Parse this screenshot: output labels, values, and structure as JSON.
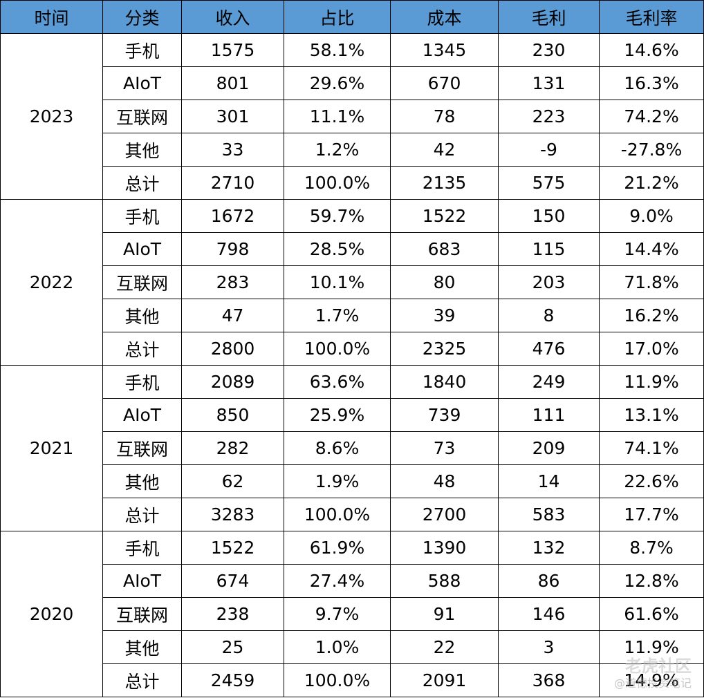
{
  "headers": [
    "时间",
    "分类",
    "收入",
    "占比",
    "成本",
    "毛利",
    "毛利率"
  ],
  "groups": [
    {
      "year": "2023",
      "rows": [
        [
          "手机",
          "1575",
          "58.1%",
          "1345",
          "230",
          "14.6%"
        ],
        [
          "AIoT",
          "801",
          "29.6%",
          "670",
          "131",
          "16.3%"
        ],
        [
          "互联网",
          "301",
          "11.1%",
          "78",
          "223",
          "74.2%"
        ],
        [
          "其他",
          "33",
          "1.2%",
          "42",
          "-9",
          "-27.8%"
        ],
        [
          "总计",
          "2710",
          "100.0%",
          "2135",
          "575",
          "21.2%"
        ]
      ]
    },
    {
      "year": "2022",
      "rows": [
        [
          "手机",
          "1672",
          "59.7%",
          "1522",
          "150",
          "9.0%"
        ],
        [
          "AIoT",
          "798",
          "28.5%",
          "683",
          "115",
          "14.4%"
        ],
        [
          "互联网",
          "283",
          "10.1%",
          "80",
          "203",
          "71.8%"
        ],
        [
          "其他",
          "47",
          "1.7%",
          "39",
          "8",
          "16.2%"
        ],
        [
          "总计",
          "2800",
          "100.0%",
          "2325",
          "476",
          "17.0%"
        ]
      ]
    },
    {
      "year": "2021",
      "rows": [
        [
          "手机",
          "2089",
          "63.6%",
          "1840",
          "249",
          "11.9%"
        ],
        [
          "AIoT",
          "850",
          "25.9%",
          "739",
          "111",
          "13.1%"
        ],
        [
          "互联网",
          "282",
          "8.6%",
          "73",
          "209",
          "74.1%"
        ],
        [
          "其他",
          "62",
          "1.9%",
          "48",
          "14",
          "22.6%"
        ],
        [
          "总计",
          "3283",
          "100.0%",
          "2700",
          "583",
          "17.7%"
        ]
      ]
    },
    {
      "year": "2020",
      "rows": [
        [
          "手机",
          "1522",
          "61.9%",
          "1390",
          "132",
          "8.7%"
        ],
        [
          "AIoT",
          "674",
          "27.4%",
          "588",
          "86",
          "12.8%"
        ],
        [
          "互联网",
          "238",
          "9.7%",
          "91",
          "146",
          "61.6%"
        ],
        [
          "其他",
          "25",
          "1.0%",
          "22",
          "3",
          "11.9%"
        ],
        [
          "总计",
          "2459",
          "100.0%",
          "2091",
          "368",
          "14.9%"
        ]
      ]
    }
  ],
  "watermark": {
    "main": "老虎社区",
    "sub": "@道德投资笔记"
  },
  "colors": {
    "header_bg": "#5b9bd5"
  }
}
